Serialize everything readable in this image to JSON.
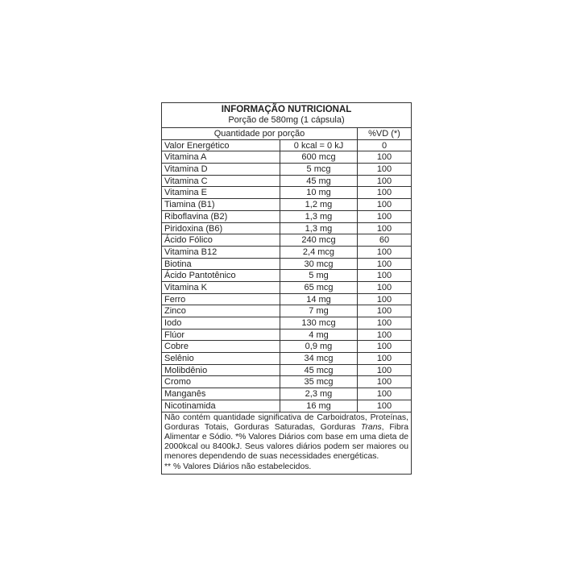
{
  "title": "INFORMAÇÃO NUTRICIONAL",
  "portion": "Porção de 580mg (1 cápsula)",
  "header": {
    "quantity": "Quantidade por porção",
    "vd": "%VD (*)"
  },
  "rows": [
    {
      "name": "Valor Energético",
      "amount": "0 kcal = 0 kJ",
      "vd": "0"
    },
    {
      "name": "Vitamina A",
      "amount": "600 mcg",
      "vd": "100"
    },
    {
      "name": "Vitamina D",
      "amount": "5 mcg",
      "vd": "100"
    },
    {
      "name": "Vitamina C",
      "amount": "45 mg",
      "vd": "100"
    },
    {
      "name": "Vitamina E",
      "amount": "10 mg",
      "vd": "100"
    },
    {
      "name": "Tiamina (B1)",
      "amount": "1,2 mg",
      "vd": "100"
    },
    {
      "name": "Riboflavina (B2)",
      "amount": "1,3 mg",
      "vd": "100"
    },
    {
      "name": "Piridoxina (B6)",
      "amount": "1,3 mg",
      "vd": "100"
    },
    {
      "name": "Ácido Fólico",
      "amount": "240 mcg",
      "vd": "60"
    },
    {
      "name": "Vitamina B12",
      "amount": "2,4 mcg",
      "vd": "100"
    },
    {
      "name": "Biotina",
      "amount": "30 mcg",
      "vd": "100"
    },
    {
      "name": "Ácido Pantotênico",
      "amount": "5 mg",
      "vd": "100"
    },
    {
      "name": "Vitamina K",
      "amount": "65 mcg",
      "vd": "100"
    },
    {
      "name": "Ferro",
      "amount": "14 mg",
      "vd": "100"
    },
    {
      "name": "Zinco",
      "amount": "7 mg",
      "vd": "100"
    },
    {
      "name": "Iodo",
      "amount": "130 mcg",
      "vd": "100"
    },
    {
      "name": "Flúor",
      "amount": "4 mg",
      "vd": "100"
    },
    {
      "name": "Cobre",
      "amount": "0,9 mg",
      "vd": "100"
    },
    {
      "name": "Selênio",
      "amount": "34 mcg",
      "vd": "100"
    },
    {
      "name": "Molibdênio",
      "amount": "45 mcg",
      "vd": "100"
    },
    {
      "name": "Cromo",
      "amount": "35 mcg",
      "vd": "100"
    },
    {
      "name": "Manganês",
      "amount": "2,3 mg",
      "vd": "100"
    },
    {
      "name": "Nicotinamida",
      "amount": "16 mg",
      "vd": "100"
    }
  ],
  "footnote": {
    "part1": "Não contém quantidade significativa de Carboidratos, Proteínas, Gorduras Totais, Gorduras Saturadas, Gorduras ",
    "trans": "Trans",
    "part2": ", Fibra Alimentar e Sódio. *% Valores Diários com base em uma dieta de 2000kcal ou 8400kJ. Seus valores diários podem ser maiores ou menores dependendo de suas necessidades energéticas.",
    "part3": "** % Valores Diários não estabelecidos."
  }
}
